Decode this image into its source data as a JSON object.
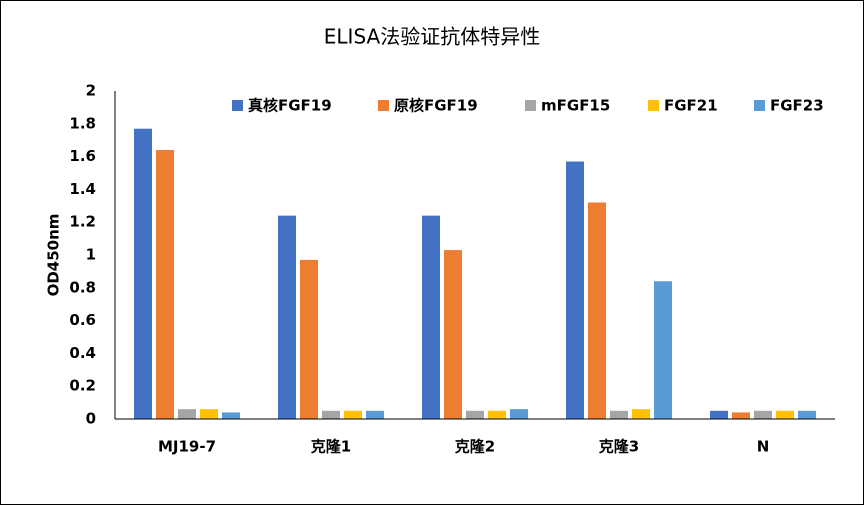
{
  "chart_data": {
    "type": "bar",
    "title": "ELISA法验证抗体特异性",
    "y_label": "OD450nm",
    "categories": [
      "MJ19-7",
      "克隆1",
      "克隆2",
      "克隆3",
      "N"
    ],
    "series": [
      {
        "name": "真核FGF19",
        "color": "#4472c4",
        "values": [
          1.77,
          1.24,
          1.24,
          1.57,
          0.05
        ]
      },
      {
        "name": "原核FGF19",
        "color": "#ed7d31",
        "values": [
          1.64,
          0.97,
          1.03,
          1.32,
          0.04
        ]
      },
      {
        "name": "mFGF15",
        "color": "#a5a5a5",
        "values": [
          0.06,
          0.05,
          0.05,
          0.05,
          0.05
        ]
      },
      {
        "name": "FGF21",
        "color": "#ffc000",
        "values": [
          0.06,
          0.05,
          0.05,
          0.06,
          0.05
        ]
      },
      {
        "name": "FGF23",
        "color": "#5b9bd5",
        "values": [
          0.04,
          0.05,
          0.06,
          0.84,
          0.05
        ]
      }
    ],
    "ylim": [
      0,
      2
    ],
    "yticks": [
      0,
      0.2,
      0.4,
      0.6,
      0.8,
      1,
      1.2,
      1.4,
      1.6,
      1.8,
      2
    ],
    "grid": false
  }
}
